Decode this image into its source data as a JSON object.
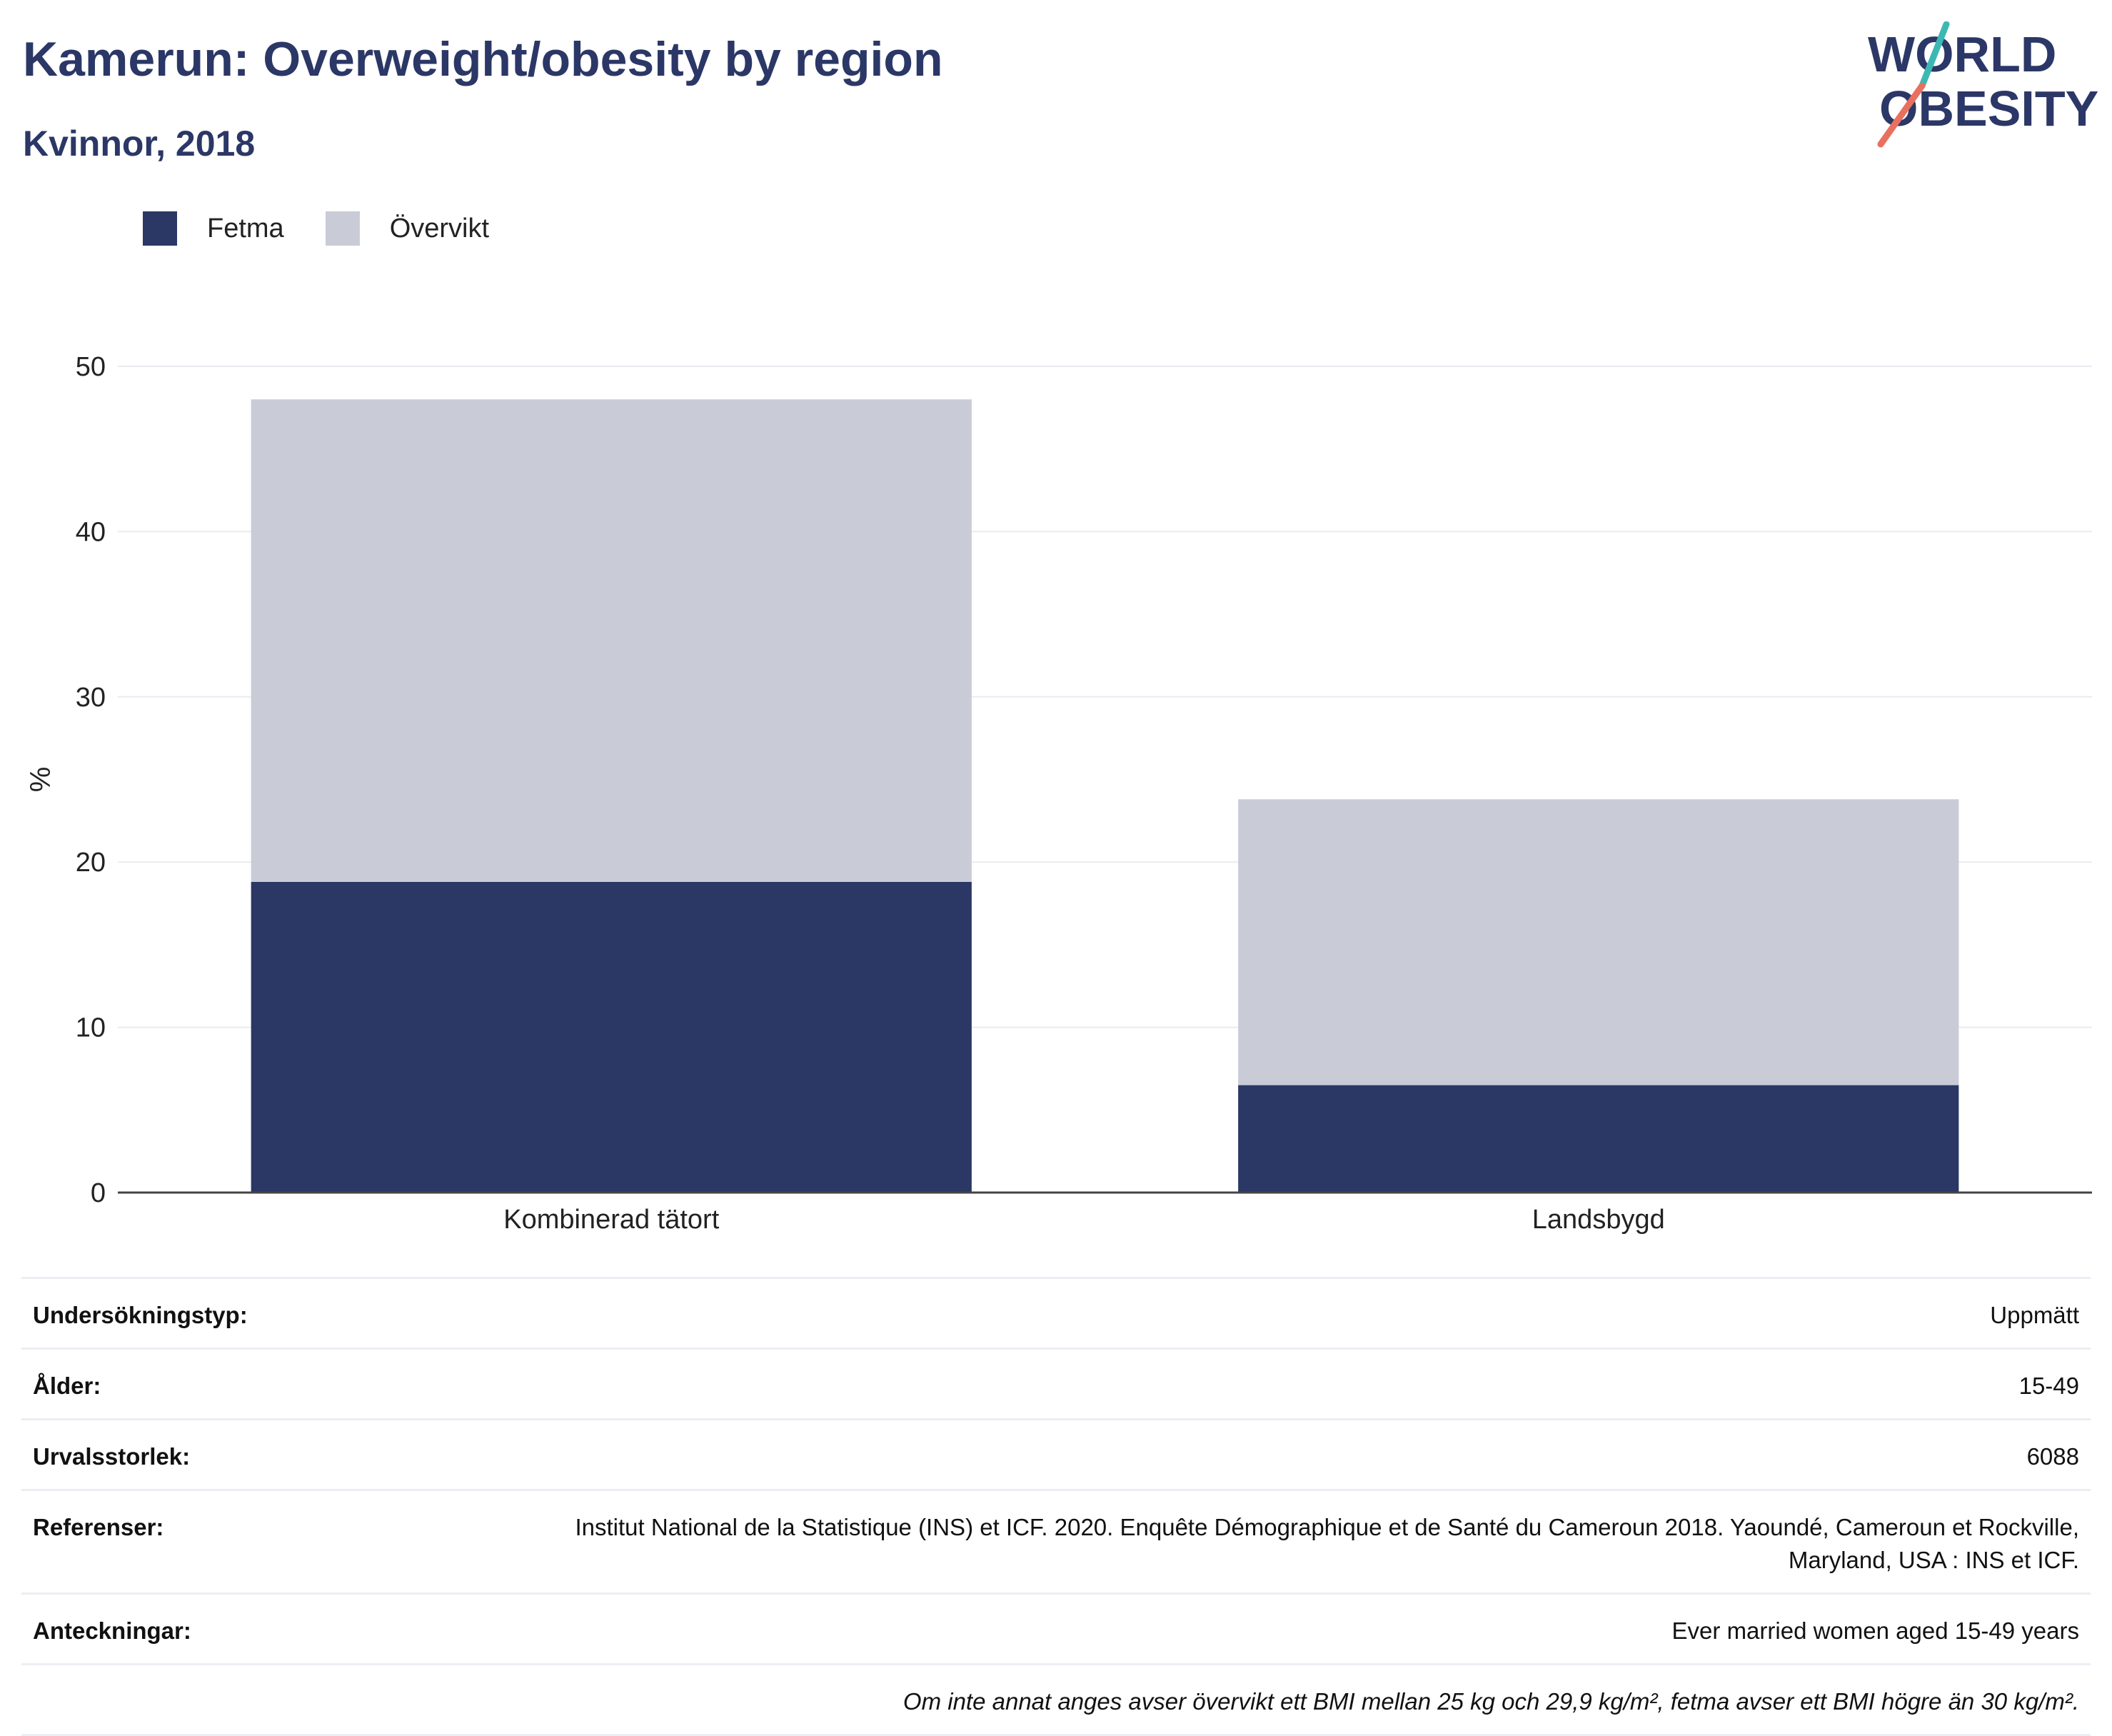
{
  "header": {
    "title": "Kamerun: Overweight/obesity by region",
    "subtitle": "Kvinnor, 2018"
  },
  "logo": {
    "line1": "WORLD",
    "line2": "OBESITY"
  },
  "colors": {
    "fetma": "#2b3764",
    "overvikt": "#c9ccd7",
    "title": "#2b3766",
    "logo_teal": "#3cb8b3",
    "logo_coral": "#e8705f"
  },
  "chart_data": {
    "type": "bar",
    "stacked": true,
    "categories": [
      "Kombinerad tätort",
      "Landsbygd"
    ],
    "series": [
      {
        "name": "Fetma",
        "values": [
          18.8,
          6.5
        ]
      },
      {
        "name": "Övervikt",
        "values": [
          29.2,
          17.3
        ]
      }
    ],
    "ylabel": "%",
    "ylim": [
      0,
      50
    ],
    "yticks": [
      0,
      10,
      20,
      30,
      40,
      50
    ],
    "grid": true,
    "legend": "top-left"
  },
  "info": {
    "rows": [
      {
        "label": "Undersökningstyp:",
        "value": "Uppmätt"
      },
      {
        "label": "Ålder:",
        "value": "15-49"
      },
      {
        "label": "Urvalsstorlek:",
        "value": "6088"
      },
      {
        "label": "Referenser:",
        "value": "Institut National de la Statistique (INS) et ICF. 2020. Enquête Démographique et de Santé du Cameroun 2018. Yaoundé, Cameroun et Rockville, Maryland, USA : INS et ICF."
      },
      {
        "label": "Anteckningar:",
        "value": "Ever married women aged 15-49 years"
      }
    ],
    "note": "Om inte annat anges avser övervikt ett BMI mellan 25 kg och 29,9 kg/m², fetma avser ett BMI högre än 30 kg/m²."
  }
}
